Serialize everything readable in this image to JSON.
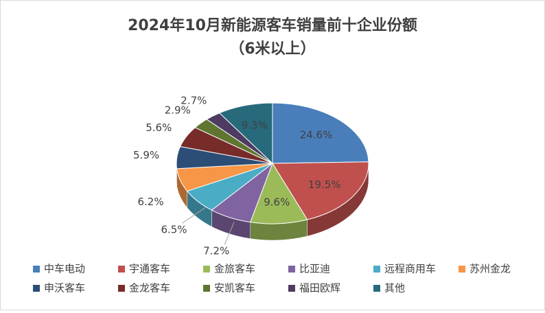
{
  "chart_data": {
    "type": "pie3d",
    "title": "2024年10月新能源客车销量前十企业份额",
    "subtitle": "（6米以上）",
    "categories": [
      "中车电动",
      "宇通客车",
      "金旅客车",
      "比亚迪",
      "远程商用车",
      "苏州金龙",
      "申沃客车",
      "金龙客车",
      "安凯客车",
      "福田欧辉",
      "其他"
    ],
    "values": [
      24.6,
      19.5,
      9.6,
      7.2,
      6.5,
      6.2,
      5.9,
      5.6,
      2.9,
      2.7,
      9.3
    ],
    "value_labels": [
      "24.6%",
      "19.5%",
      "9.6%",
      "7.2%",
      "6.5%",
      "6.2%",
      "5.9%",
      "5.6%",
      "2.9%",
      "2.7%",
      "9.3%"
    ],
    "colors": [
      "#4a7ebb",
      "#c0504d",
      "#9bbb59",
      "#8064a2",
      "#4bacc6",
      "#f79646",
      "#2c4d75",
      "#772c2a",
      "#5f7530",
      "#4d3b62",
      "#276a7c"
    ]
  }
}
